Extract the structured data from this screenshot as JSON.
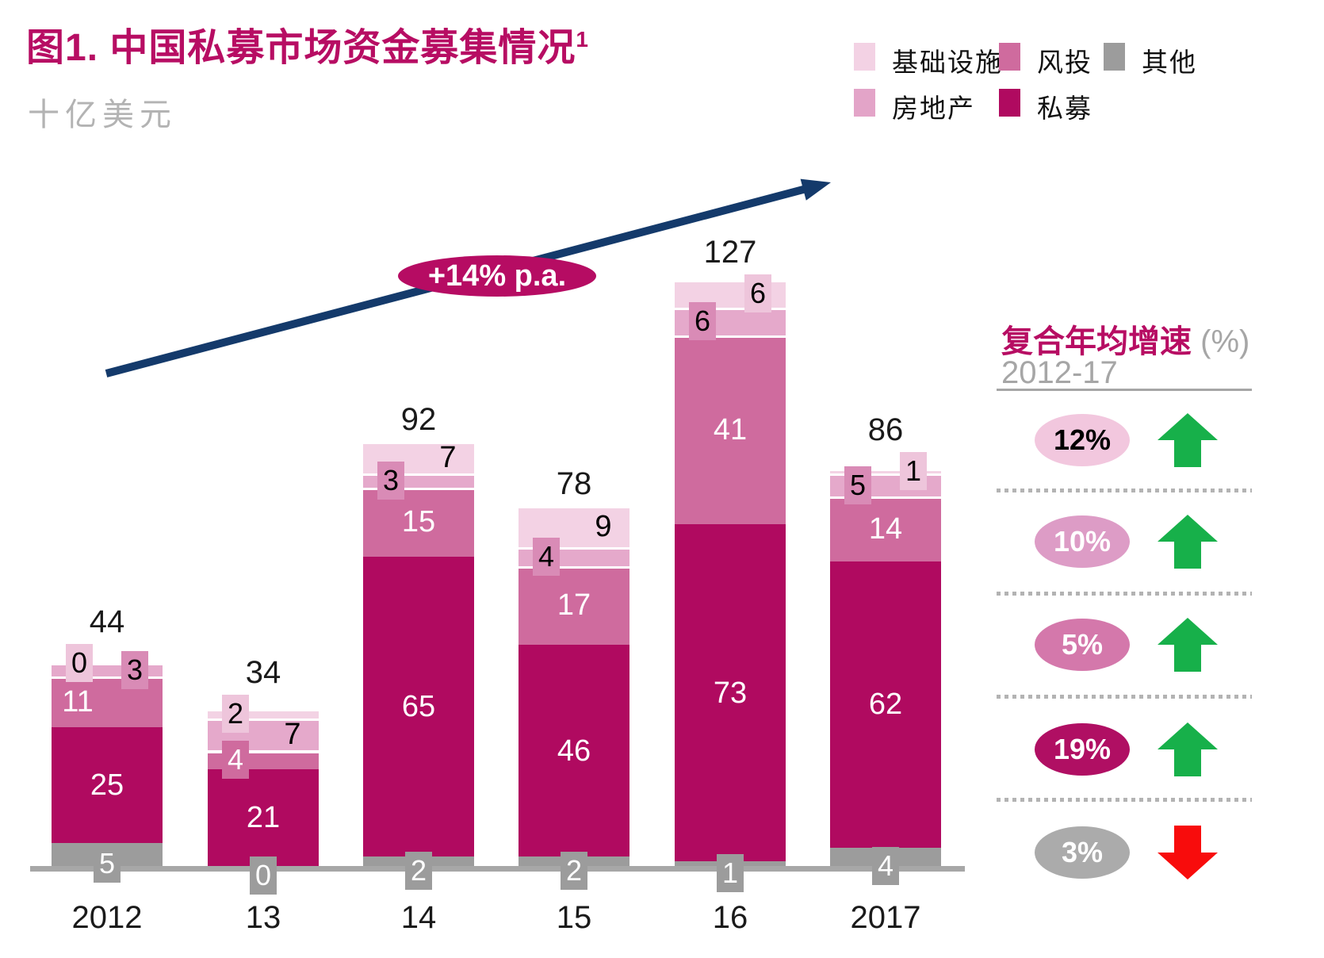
{
  "title": {
    "text": "图1. 中国私募市场资金募集情况",
    "footnote": "1"
  },
  "subtitle": "十亿美元",
  "legend": {
    "items": [
      {
        "key": "infra",
        "label": "基础设施",
        "color": "#f3d2e4",
        "row": 1
      },
      {
        "key": "vc",
        "label": "风投",
        "color": "#cf6b9e",
        "row": 1
      },
      {
        "key": "other",
        "label": "其他",
        "color": "#9c9c9c",
        "row": 1
      },
      {
        "key": "re",
        "label": "房地产",
        "color": "#e3a4c8",
        "row": 2
      },
      {
        "key": "pe",
        "label": "私募",
        "color": "#b00a60",
        "row": 2
      }
    ]
  },
  "growth_arrow": {
    "label": "+14% p.a.",
    "line_color": "#143a6b",
    "oval_color": "#b60c63"
  },
  "cagr_panel": {
    "title": "复合年均增速",
    "title_suffix": "(%)",
    "subtitle": "2012-17",
    "up_color": "#17b04a",
    "down_color": "#f80c0c",
    "rows": [
      {
        "value": "12%",
        "oval_color": "#f2c7de",
        "text_color": "#000000",
        "direction": "up"
      },
      {
        "value": "10%",
        "oval_color": "#dd9cc6",
        "text_color": "#ffffff",
        "direction": "up"
      },
      {
        "value": "5%",
        "oval_color": "#d478ab",
        "text_color": "#ffffff",
        "direction": "up"
      },
      {
        "value": "19%",
        "oval_color": "#b00f63",
        "text_color": "#ffffff",
        "direction": "up"
      },
      {
        "value": "3%",
        "oval_color": "#ababab",
        "text_color": "#ffffff",
        "direction": "down"
      }
    ]
  },
  "chart_data": {
    "type": "bar",
    "stacked": true,
    "title": "图1. 中国私募市场资金募集情况",
    "ylabel": "十亿美元",
    "categories": [
      "2012",
      "13",
      "14",
      "15",
      "16",
      "2017"
    ],
    "series": [
      {
        "key": "other",
        "name": "其他",
        "values": [
          5,
          0,
          2,
          2,
          1,
          4
        ],
        "color": "#9c9c9c",
        "box_color": "#9c9c9c",
        "label_color": "#ffffff"
      },
      {
        "key": "pe",
        "name": "私募",
        "values": [
          25,
          21,
          65,
          46,
          73,
          62
        ],
        "color": "#b00a60",
        "box_color": "#b00a60",
        "label_color": "#ffffff"
      },
      {
        "key": "vc",
        "name": "风投",
        "values": [
          11,
          4,
          15,
          17,
          41,
          14
        ],
        "color": "#cf6b9e",
        "box_color": "#cf6b9e",
        "label_color": "#ffffff"
      },
      {
        "key": "re",
        "name": "房地产",
        "values": [
          3,
          7,
          3,
          4,
          6,
          5
        ],
        "color": "#e5a9cb",
        "box_color": "#d98bb6",
        "label_color": "#000000"
      },
      {
        "key": "infra",
        "name": "基础设施",
        "values": [
          0,
          2,
          7,
          9,
          6,
          1
        ],
        "color": "#f3d2e4",
        "box_color": "#eec5db",
        "label_color": "#000000"
      }
    ],
    "totals": [
      44,
      34,
      92,
      78,
      127,
      86
    ],
    "annotation": "+14% p.a.",
    "cagr_2012_17": {
      "基础设施": "12%",
      "房地产": "10%",
      "风投": "5%",
      "私募": "19%",
      "其他": "3%"
    }
  }
}
